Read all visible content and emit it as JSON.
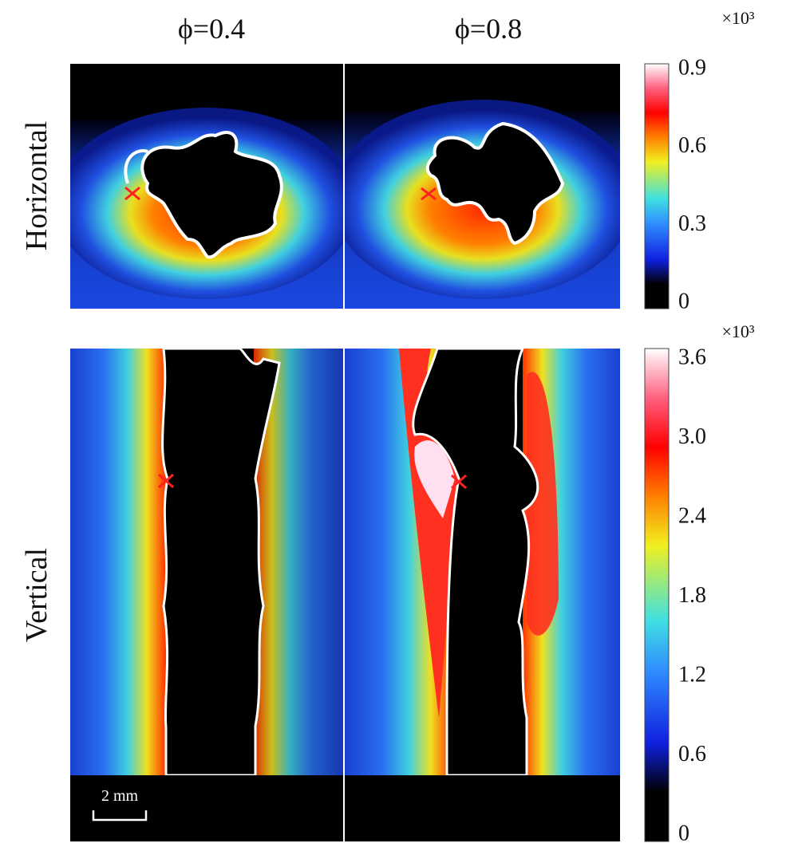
{
  "columns": [
    {
      "title": "ϕ=0.4"
    },
    {
      "title": "ϕ=0.8"
    }
  ],
  "rows": [
    {
      "label": "Horizontal"
    },
    {
      "label": "Vertical"
    }
  ],
  "colorbars": [
    {
      "multiplier": "×10³",
      "ticks": [
        "0.9",
        "0.6",
        "0.3",
        "0"
      ]
    },
    {
      "multiplier": "×10³",
      "ticks": [
        "3.6",
        "3.0",
        "2.4",
        "1.8",
        "1.2",
        "0.6",
        "0"
      ]
    }
  ],
  "scale_bar": "2 mm"
}
